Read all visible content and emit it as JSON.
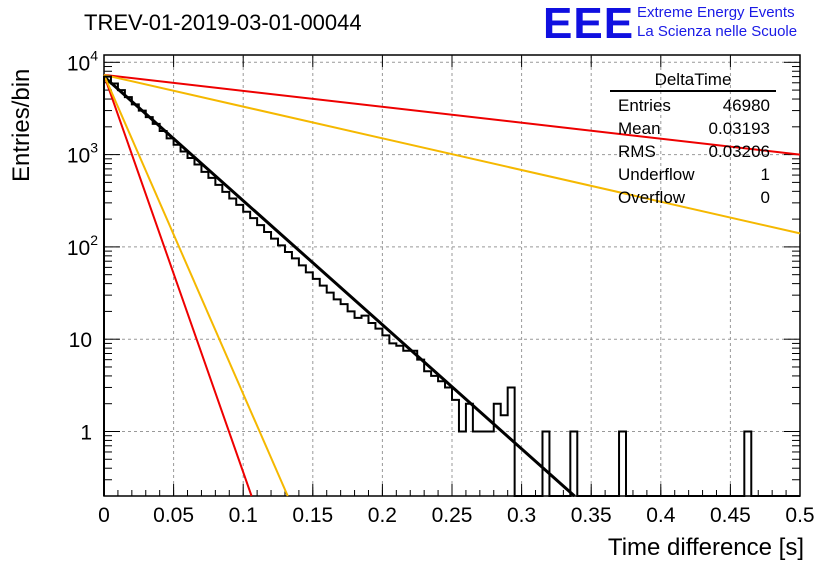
{
  "chart_data": {
    "type": "histogram",
    "title": "TREV-01-2019-03-01-00044",
    "xlabel": "Time difference [s]",
    "ylabel": "Entries/bin",
    "xlim": [
      0,
      0.5
    ],
    "ylim": [
      0.2,
      12000
    ],
    "yscale": "log",
    "grid": true,
    "x_ticks": [
      "0",
      "0.05",
      "0.1",
      "0.15",
      "0.2",
      "0.25",
      "0.3",
      "0.35",
      "0.4",
      "0.45",
      "0.5"
    ],
    "y_ticks": [
      {
        "value": 1,
        "base": "1",
        "exp": ""
      },
      {
        "value": 10,
        "base": "10",
        "exp": ""
      },
      {
        "value": 100,
        "base": "10",
        "exp": "2"
      },
      {
        "value": 1000,
        "base": "10",
        "exp": "3"
      },
      {
        "value": 10000,
        "base": "10",
        "exp": "4"
      }
    ],
    "histogram": {
      "bin_width": 0.005,
      "values": [
        7000,
        5900,
        5000,
        4200,
        3500,
        3000,
        2550,
        2150,
        1800,
        1500,
        1280,
        1080,
        920,
        780,
        650,
        560,
        470,
        395,
        335,
        285,
        240,
        205,
        172,
        145,
        123,
        104,
        88,
        75,
        63,
        53,
        45,
        38,
        32,
        27,
        24,
        20,
        17,
        18,
        15,
        13,
        11,
        9,
        8.5,
        7.5,
        7.5,
        6,
        4.5,
        4,
        3.5,
        3,
        2.2,
        1,
        2,
        1,
        1,
        1,
        2,
        1.5,
        3,
        0,
        0,
        0,
        0,
        1,
        0,
        0,
        0,
        1,
        0,
        0,
        0,
        0,
        0,
        0,
        1,
        0,
        0,
        0,
        0,
        0,
        0,
        0,
        0,
        0,
        0,
        0,
        0,
        0,
        0,
        0,
        0,
        0,
        1,
        0,
        0,
        0,
        0,
        0,
        0,
        0
      ]
    },
    "lines": [
      {
        "color": "#000000",
        "y0": 7000,
        "y_end": 0.2,
        "x_end": 0.338
      },
      {
        "color": "#ee0000",
        "y0": 7300,
        "y_end": 1000,
        "x_end": 0.5
      },
      {
        "color": "#ee0000",
        "y0": 7300,
        "y_end": 0.2,
        "x_end": 0.106
      },
      {
        "color": "#f5b800",
        "y0": 7300,
        "y_end": 140,
        "x_end": 0.5
      },
      {
        "color": "#f5b800",
        "y0": 7300,
        "y_end": 0.2,
        "x_end": 0.132
      }
    ],
    "stats": {
      "title": "DeltaTime",
      "rows": [
        {
          "label": "Entries",
          "value": "46980"
        },
        {
          "label": "Mean",
          "value": "0.03193"
        },
        {
          "label": "RMS",
          "value": "0.03206"
        },
        {
          "label": "Underflow",
          "value": "1"
        },
        {
          "label": "Overflow",
          "value": "0"
        }
      ]
    }
  },
  "logo": {
    "mark": "EEE",
    "line1": "Extreme Energy Events",
    "line2": "La Scienza nelle Scuole",
    "color": "#1010e0"
  }
}
